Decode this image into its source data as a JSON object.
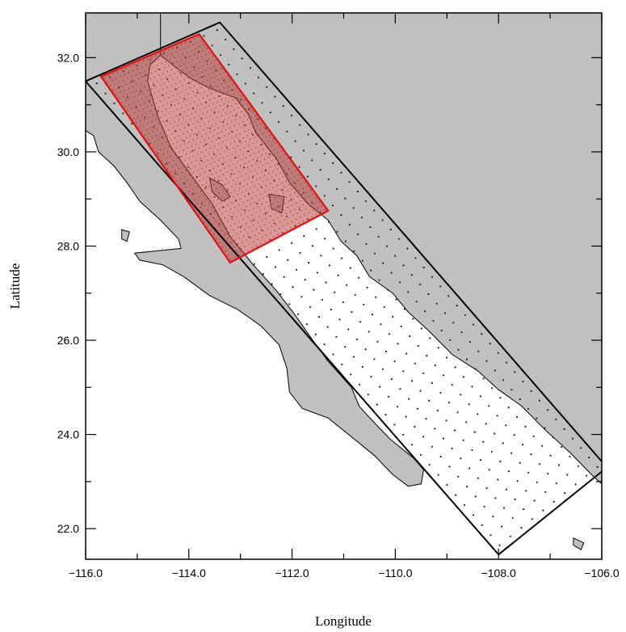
{
  "map": {
    "xlabel": "Longitude",
    "ylabel": "Latitude",
    "xlim": [
      -116.0,
      -106.0
    ],
    "ylim": [
      21.35,
      32.95
    ],
    "x_ticks": [
      {
        "value": -116.0,
        "label": "−116.0"
      },
      {
        "value": -114.0,
        "label": "−114.0"
      },
      {
        "value": -112.0,
        "label": "−112.0"
      },
      {
        "value": -110.0,
        "label": "−110.0"
      },
      {
        "value": -108.0,
        "label": "−108.0"
      },
      {
        "value": -106.0,
        "label": "−106.0"
      }
    ],
    "x_minor_ticks": [
      -115.0,
      -113.0,
      -111.0,
      -109.0,
      -107.0
    ],
    "y_ticks": [
      {
        "value": 22.0,
        "label": "22.0"
      },
      {
        "value": 24.0,
        "label": "24.0"
      },
      {
        "value": 26.0,
        "label": "26.0"
      },
      {
        "value": 28.0,
        "label": "28.0"
      },
      {
        "value": 30.0,
        "label": "30.0"
      },
      {
        "value": 32.0,
        "label": "32.0"
      }
    ],
    "y_minor_ticks": [
      23.0,
      25.0,
      27.0,
      29.0,
      31.0
    ],
    "colors": {
      "land": "#c0c0c0",
      "water": "#ffffff",
      "grid_points": "#222222",
      "outer_domain": "#000000",
      "nested_domain": "#e01010",
      "nested_fill": "#c04040"
    },
    "outer_domain": {
      "corners": [
        {
          "lon": -116.0,
          "lat": 31.5
        },
        {
          "lon": -113.4,
          "lat": 32.75
        },
        {
          "lon": -105.9,
          "lat": 23.3
        },
        {
          "lon": -108.0,
          "lat": 21.45
        }
      ]
    },
    "nested_domain": {
      "corners": [
        {
          "lon": -115.7,
          "lat": 31.6
        },
        {
          "lon": -113.8,
          "lat": 32.5
        },
        {
          "lon": -111.3,
          "lat": 28.75
        },
        {
          "lon": -113.2,
          "lat": 27.65
        }
      ]
    },
    "coastline": {
      "baja_west": [
        [
          -116.0,
          30.45
        ],
        [
          -115.85,
          30.35
        ],
        [
          -115.75,
          30.0
        ],
        [
          -115.45,
          29.7
        ],
        [
          -115.2,
          29.35
        ],
        [
          -114.95,
          28.95
        ],
        [
          -114.55,
          28.55
        ],
        [
          -114.2,
          28.15
        ],
        [
          -114.15,
          27.95
        ],
        [
          -114.6,
          27.9
        ],
        [
          -115.05,
          27.85
        ],
        [
          -114.95,
          27.7
        ],
        [
          -114.5,
          27.6
        ],
        [
          -114.1,
          27.35
        ],
        [
          -113.6,
          26.95
        ],
        [
          -113.05,
          26.65
        ],
        [
          -112.6,
          26.3
        ],
        [
          -112.25,
          25.9
        ],
        [
          -112.1,
          25.4
        ],
        [
          -112.05,
          24.9
        ],
        [
          -111.8,
          24.55
        ],
        [
          -111.3,
          24.35
        ],
        [
          -110.85,
          23.95
        ],
        [
          -110.4,
          23.55
        ],
        [
          -110.05,
          23.15
        ],
        [
          -109.75,
          22.9
        ],
        [
          -109.5,
          22.95
        ],
        [
          -109.45,
          23.25
        ],
        [
          -109.65,
          23.5
        ]
      ],
      "baja_gulf": [
        [
          -109.65,
          23.5
        ],
        [
          -110.1,
          23.9
        ],
        [
          -110.45,
          24.3
        ],
        [
          -110.7,
          24.6
        ],
        [
          -110.85,
          25.0
        ],
        [
          -111.3,
          25.55
        ],
        [
          -111.6,
          26.0
        ],
        [
          -111.95,
          26.55
        ],
        [
          -112.3,
          27.05
        ],
        [
          -112.75,
          27.6
        ],
        [
          -113.2,
          28.2
        ],
        [
          -113.55,
          28.9
        ],
        [
          -113.95,
          29.5
        ],
        [
          -114.35,
          30.1
        ],
        [
          -114.6,
          30.75
        ],
        [
          -114.8,
          31.5
        ],
        [
          -114.75,
          31.85
        ],
        [
          -114.55,
          32.05
        ]
      ],
      "mainland": [
        [
          -114.55,
          32.05
        ],
        [
          -114.2,
          31.75
        ],
        [
          -113.95,
          31.55
        ],
        [
          -113.6,
          31.35
        ],
        [
          -113.1,
          31.15
        ],
        [
          -112.85,
          30.8
        ],
        [
          -112.7,
          30.4
        ],
        [
          -112.3,
          29.85
        ],
        [
          -112.05,
          29.35
        ],
        [
          -111.7,
          28.9
        ],
        [
          -111.3,
          28.55
        ],
        [
          -111.05,
          28.1
        ],
        [
          -110.75,
          27.8
        ],
        [
          -110.5,
          27.35
        ],
        [
          -110.05,
          27.0
        ],
        [
          -109.75,
          26.6
        ],
        [
          -109.35,
          26.2
        ],
        [
          -108.9,
          25.7
        ],
        [
          -108.4,
          25.35
        ],
        [
          -108.0,
          24.95
        ],
        [
          -107.55,
          24.6
        ],
        [
          -107.1,
          24.1
        ],
        [
          -106.6,
          23.6
        ],
        [
          -106.2,
          23.15
        ],
        [
          -105.9,
          22.85
        ]
      ],
      "islands": [
        [
          [
            -113.6,
            29.45
          ],
          [
            -113.35,
            29.3
          ],
          [
            -113.2,
            29.05
          ],
          [
            -113.35,
            28.95
          ],
          [
            -113.55,
            29.15
          ]
        ],
        [
          [
            -112.45,
            29.1
          ],
          [
            -112.15,
            29.05
          ],
          [
            -112.2,
            28.7
          ],
          [
            -112.4,
            28.8
          ]
        ],
        [
          [
            -115.3,
            28.35
          ],
          [
            -115.15,
            28.3
          ],
          [
            -115.2,
            28.1
          ],
          [
            -115.3,
            28.15
          ]
        ],
        [
          [
            -106.55,
            21.8
          ],
          [
            -106.35,
            21.7
          ],
          [
            -106.4,
            21.55
          ],
          [
            -106.55,
            21.65
          ]
        ]
      ]
    }
  }
}
